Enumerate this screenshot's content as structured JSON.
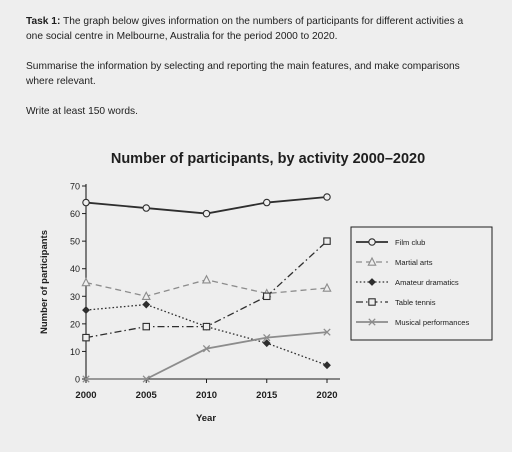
{
  "task": {
    "label": "Task 1:",
    "line1": "The graph below gives information on the numbers of participants for different activities a",
    "line2": "one social centre in Melbourne, Australia for the period 2000 to 2020.",
    "line3": "Summarise the information by selecting and reporting the main features, and make comparisons",
    "line4": "where relevant.",
    "line5": "Write at least 150 words."
  },
  "chart_data": {
    "type": "line",
    "title": "Number of participants, by activity 2000–2020",
    "xlabel": "Year",
    "ylabel": "Number of participants",
    "x": [
      2000,
      2005,
      2010,
      2015,
      2020
    ],
    "ylim": [
      0,
      70
    ],
    "yticks": [
      0,
      10,
      20,
      30,
      40,
      50,
      60,
      70
    ],
    "grid": false,
    "legend_position": "right",
    "series": [
      {
        "name": "Film club",
        "values": [
          64,
          62,
          60,
          64,
          66
        ],
        "marker": "circle",
        "style": "solid",
        "color": "#2e2e2e"
      },
      {
        "name": "Martial arts",
        "values": [
          35,
          30,
          36,
          31,
          33
        ],
        "marker": "triangle",
        "style": "dashed",
        "color": "#8c8c8c"
      },
      {
        "name": "Amateur dramatics",
        "values": [
          25,
          27,
          19,
          13,
          5
        ],
        "marker": "diamond",
        "style": "dotted",
        "color": "#2e2e2e"
      },
      {
        "name": "Table tennis",
        "values": [
          15,
          19,
          19,
          30,
          50
        ],
        "marker": "square",
        "style": "dashdot",
        "color": "#2e2e2e"
      },
      {
        "name": "Musical performances",
        "values": [
          0,
          0,
          11,
          15,
          17
        ],
        "marker": "cross",
        "style": "solid",
        "color": "#8c8c8c"
      }
    ]
  }
}
